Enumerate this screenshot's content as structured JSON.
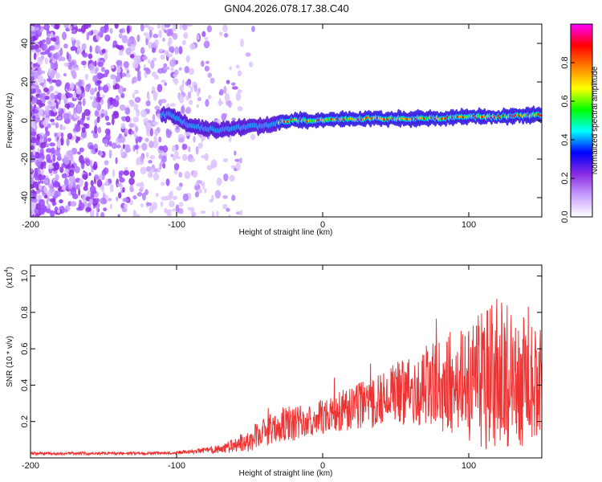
{
  "title": "GN04.2026.078.17.38.C40",
  "chart_data": [
    {
      "type": "heatmap",
      "title": "GN04.2026.078.17.38.C40",
      "xlabel": "Height of straight line (km)",
      "ylabel": "Frequency (Hz)",
      "xlim": [
        -200,
        150
      ],
      "ylim": [
        -50,
        50
      ],
      "xticks": [
        -200,
        -100,
        0,
        100
      ],
      "yticks": [
        -40,
        -20,
        0,
        20,
        40
      ],
      "x_tick_labels": [
        "-200",
        "-100",
        "0",
        "100"
      ],
      "y_tick_labels": [
        "-40",
        "-20",
        "0",
        "20",
        "40"
      ],
      "ridge": {
        "description": "narrow high-amplitude band tracking the Doppler frequency",
        "x": [
          -105,
          -90,
          -80,
          -70,
          -60,
          -50,
          -40,
          -30,
          -20,
          -10,
          0,
          20,
          40,
          60,
          80,
          100,
          120,
          150
        ],
        "frequency": [
          3,
          -3,
          -4,
          -5,
          -4,
          -3,
          -3,
          -1,
          0,
          0,
          0,
          1,
          1,
          1,
          1,
          2,
          2,
          3
        ]
      },
      "colorbar": {
        "label": "Normalized spectral amplitude",
        "range": [
          0,
          1
        ],
        "ticks": [
          0.0,
          0.2,
          0.4,
          0.6,
          0.8
        ],
        "tick_labels": [
          "0.0",
          "0.2",
          "0.4",
          "0.6",
          "0.8"
        ],
        "colors": [
          "#ffffff",
          "#c8a0ff",
          "#8a2be2",
          "#0000ff",
          "#00ffff",
          "#00ff00",
          "#ffff00",
          "#ff8000",
          "#ff0000",
          "#ff00ff"
        ]
      }
    },
    {
      "type": "line",
      "xlabel": "Height of straight line (km)",
      "ylabel": "SNR (10 * v/v)",
      "scale_label": "(x10",
      "scale_exponent": "4",
      "scale_close": ")",
      "xlim": [
        -200,
        150
      ],
      "ylim": [
        0,
        1.06
      ],
      "xticks": [
        -200,
        -100,
        0,
        100
      ],
      "yticks": [
        0.2,
        0.4,
        0.6,
        0.8,
        1.0
      ],
      "x_tick_labels": [
        "-200",
        "-100",
        "0",
        "100"
      ],
      "y_tick_labels": [
        "0.2",
        "0.4",
        "0.6",
        "0.8",
        "1.0"
      ],
      "color": "#ee3333",
      "series": [
        {
          "name": "SNR",
          "x": [
            -200,
            -180,
            -160,
            -140,
            -120,
            -100,
            -90,
            -80,
            -70,
            -60,
            -50,
            -40,
            -30,
            -20,
            -10,
            0,
            10,
            20,
            30,
            40,
            50,
            60,
            70,
            80,
            90,
            100,
            110,
            120,
            130,
            140,
            150
          ],
          "y": [
            0.025,
            0.025,
            0.025,
            0.025,
            0.025,
            0.03,
            0.035,
            0.04,
            0.05,
            0.07,
            0.1,
            0.14,
            0.18,
            0.19,
            0.2,
            0.22,
            0.25,
            0.28,
            0.3,
            0.32,
            0.35,
            0.38,
            0.4,
            0.4,
            0.42,
            0.42,
            0.42,
            0.45,
            0.42,
            0.4,
            0.42
          ],
          "noise_amplitude": [
            0.01,
            0.01,
            0.01,
            0.01,
            0.01,
            0.012,
            0.015,
            0.02,
            0.03,
            0.05,
            0.08,
            0.1,
            0.12,
            0.12,
            0.12,
            0.12,
            0.14,
            0.16,
            0.18,
            0.2,
            0.22,
            0.25,
            0.28,
            0.32,
            0.36,
            0.42,
            0.48,
            0.55,
            0.5,
            0.45,
            0.4
          ]
        }
      ]
    }
  ]
}
